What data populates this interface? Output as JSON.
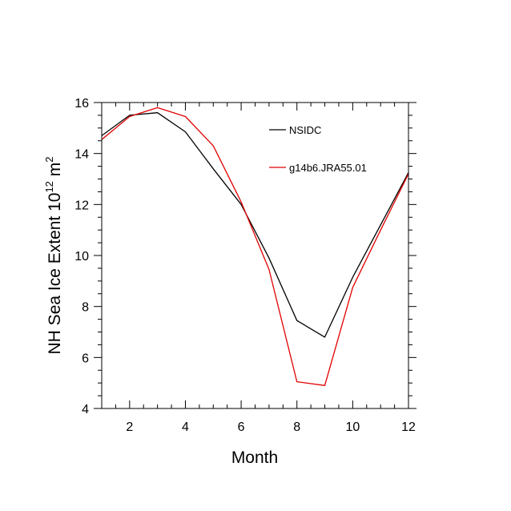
{
  "chart_data": {
    "type": "line",
    "xlabel": "Month",
    "ylabel": {
      "main": "NH Sea Ice Extent 10",
      "exp1": "12",
      "unit": " m",
      "exp2": "2"
    },
    "xlim": [
      1,
      12
    ],
    "ylim": [
      4,
      16
    ],
    "xticks": [
      2,
      4,
      6,
      8,
      10,
      12
    ],
    "yticks": [
      4,
      6,
      8,
      10,
      12,
      14,
      16
    ],
    "x": [
      1,
      2,
      3,
      4,
      5,
      6,
      7,
      8,
      9,
      10,
      11,
      12
    ],
    "series": [
      {
        "name": "NSIDC",
        "color": "#000000",
        "values": [
          14.7,
          15.5,
          15.6,
          14.85,
          13.4,
          12.0,
          9.9,
          7.45,
          6.8,
          9.15,
          11.2,
          13.25
        ]
      },
      {
        "name": "g14b6.JRA55.01",
        "color": "#e00000",
        "values": [
          14.55,
          15.45,
          15.8,
          15.45,
          14.3,
          12.1,
          9.45,
          5.05,
          4.9,
          8.75,
          11.0,
          13.2
        ]
      }
    ],
    "legend_position": "top-right",
    "grid": false
  }
}
